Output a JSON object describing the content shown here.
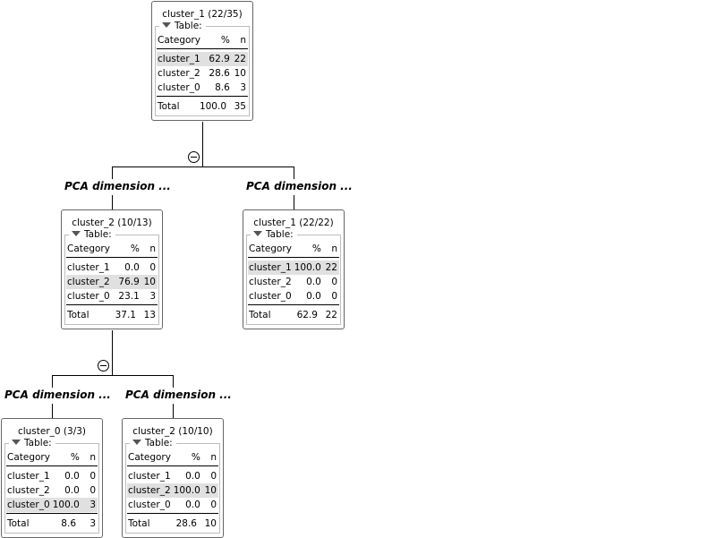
{
  "tree": {
    "nodes": [
      {
        "id": "root",
        "title": "cluster_1 (22/35)",
        "table_label": "Table:",
        "header": [
          "Category",
          "%",
          "n"
        ],
        "rows": [
          {
            "category": "cluster_1",
            "pct": "62.9",
            "n": "22",
            "highlight": true
          },
          {
            "category": "cluster_2",
            "pct": "28.6",
            "n": "10",
            "highlight": false
          },
          {
            "category": "cluster_0",
            "pct": "8.6",
            "n": "3",
            "highlight": false
          }
        ],
        "total": {
          "label": "Total",
          "pct": "100.0",
          "n": "35"
        }
      },
      {
        "id": "n_left",
        "title": "cluster_2 (10/13)",
        "table_label": "Table:",
        "header": [
          "Category",
          "%",
          "n"
        ],
        "rows": [
          {
            "category": "cluster_1",
            "pct": "0.0",
            "n": "0",
            "highlight": false
          },
          {
            "category": "cluster_2",
            "pct": "76.9",
            "n": "10",
            "highlight": true
          },
          {
            "category": "cluster_0",
            "pct": "23.1",
            "n": "3",
            "highlight": false
          }
        ],
        "total": {
          "label": "Total",
          "pct": "37.1",
          "n": "13"
        }
      },
      {
        "id": "n_right",
        "title": "cluster_1 (22/22)",
        "table_label": "Table:",
        "header": [
          "Category",
          "%",
          "n"
        ],
        "rows": [
          {
            "category": "cluster_1",
            "pct": "100.0",
            "n": "22",
            "highlight": true
          },
          {
            "category": "cluster_2",
            "pct": "0.0",
            "n": "0",
            "highlight": false
          },
          {
            "category": "cluster_0",
            "pct": "0.0",
            "n": "0",
            "highlight": false
          }
        ],
        "total": {
          "label": "Total",
          "pct": "62.9",
          "n": "22"
        }
      },
      {
        "id": "n_ll",
        "title": "cluster_0 (3/3)",
        "table_label": "Table:",
        "header": [
          "Category",
          "%",
          "n"
        ],
        "rows": [
          {
            "category": "cluster_1",
            "pct": "0.0",
            "n": "0",
            "highlight": false
          },
          {
            "category": "cluster_2",
            "pct": "0.0",
            "n": "0",
            "highlight": false
          },
          {
            "category": "cluster_0",
            "pct": "100.0",
            "n": "3",
            "highlight": true
          }
        ],
        "total": {
          "label": "Total",
          "pct": "8.6",
          "n": "3"
        }
      },
      {
        "id": "n_lr",
        "title": "cluster_2 (10/10)",
        "table_label": "Table:",
        "header": [
          "Category",
          "%",
          "n"
        ],
        "rows": [
          {
            "category": "cluster_1",
            "pct": "0.0",
            "n": "0",
            "highlight": false
          },
          {
            "category": "cluster_2",
            "pct": "100.0",
            "n": "10",
            "highlight": true
          },
          {
            "category": "cluster_0",
            "pct": "0.0",
            "n": "0",
            "highlight": false
          }
        ],
        "total": {
          "label": "Total",
          "pct": "28.6",
          "n": "10"
        }
      }
    ],
    "edge_labels": {
      "root_left": "PCA dimension ...",
      "root_right": "PCA dimension ...",
      "left_left": "PCA dimension ...",
      "left_right": "PCA dimension ..."
    },
    "collapse_icon": "minus-circle-icon",
    "highlight_color": "#e0e0e0",
    "border_color": "#666666"
  }
}
